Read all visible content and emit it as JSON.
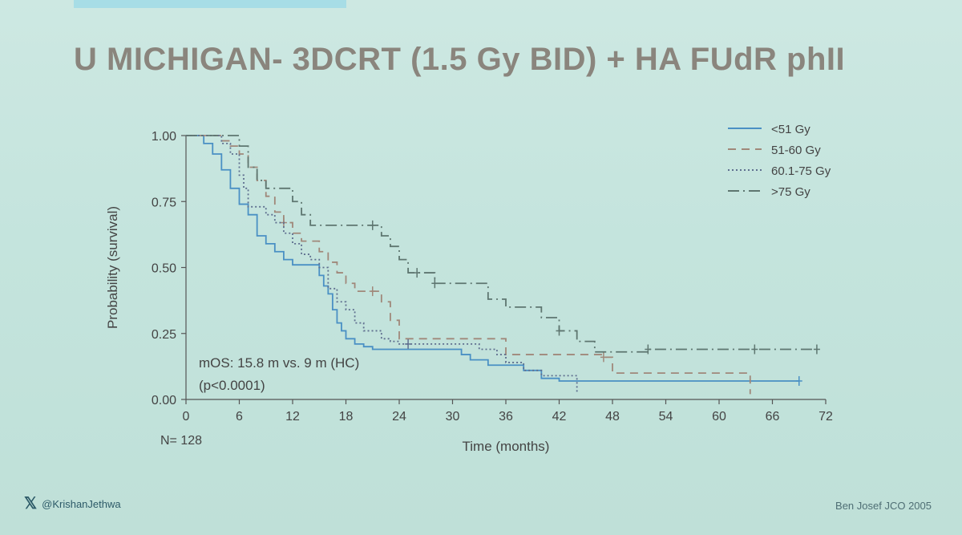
{
  "slide": {
    "title": "U MICHIGAN- 3DCRT (1.5 Gy BID) + HA FUdR phII",
    "handle": "@KrishanJethwa",
    "handle_icon": "x-logo-icon",
    "citation": "Ben Josef JCO 2005"
  },
  "chart_data": {
    "type": "line",
    "xlabel": "Time (months)",
    "ylabel": "Probability (survival)",
    "xlim": [
      0,
      72
    ],
    "ylim": [
      0,
      1
    ],
    "xticks": [
      0,
      6,
      12,
      18,
      24,
      30,
      36,
      42,
      48,
      54,
      60,
      66,
      72
    ],
    "yticks": [
      0.0,
      0.25,
      0.5,
      0.75,
      1.0
    ],
    "ytick_labels": [
      "0.00",
      "0.25",
      "0.50",
      "0.75",
      "1.00"
    ],
    "legend_position": "top-right",
    "annotations": [
      "mOS: 15.8 m vs. 9 m (HC)",
      "(p<0.0001)",
      "N= 128"
    ],
    "series": [
      {
        "name": "<51 Gy",
        "color": "#4a90c4",
        "dash": "solid",
        "x": [
          0,
          2,
          3,
          4,
          5,
          6,
          7,
          8,
          9,
          10,
          11,
          12,
          13,
          15,
          15.5,
          16,
          16.5,
          17,
          17.5,
          18,
          19,
          20,
          21,
          22,
          24,
          26,
          28,
          30,
          31,
          32,
          34,
          36,
          38,
          40,
          42,
          44,
          48,
          54,
          60,
          66,
          69
        ],
        "y": [
          1.0,
          0.97,
          0.93,
          0.87,
          0.8,
          0.74,
          0.7,
          0.62,
          0.59,
          0.56,
          0.53,
          0.51,
          0.51,
          0.47,
          0.43,
          0.4,
          0.34,
          0.29,
          0.26,
          0.23,
          0.21,
          0.2,
          0.19,
          0.19,
          0.19,
          0.19,
          0.19,
          0.19,
          0.17,
          0.15,
          0.13,
          0.13,
          0.11,
          0.08,
          0.07,
          0.07,
          0.07,
          0.07,
          0.07,
          0.07,
          0.07
        ],
        "censor_x": [
          69
        ]
      },
      {
        "name": "51-60 Gy",
        "color": "#a0887a",
        "dash": "10,7",
        "x": [
          0,
          3,
          4,
          5,
          6,
          7,
          8,
          9,
          10,
          11,
          12,
          13,
          14,
          15,
          16,
          17,
          18,
          19,
          20,
          21,
          22,
          23,
          24,
          25,
          28,
          32,
          35,
          36,
          40,
          44,
          46,
          47,
          48,
          54,
          60,
          63.5
        ],
        "y": [
          1.0,
          1.0,
          0.98,
          0.96,
          0.93,
          0.88,
          0.83,
          0.77,
          0.71,
          0.67,
          0.63,
          0.6,
          0.6,
          0.56,
          0.52,
          0.48,
          0.44,
          0.41,
          0.41,
          0.41,
          0.37,
          0.3,
          0.23,
          0.23,
          0.23,
          0.23,
          0.23,
          0.17,
          0.17,
          0.17,
          0.17,
          0.16,
          0.1,
          0.1,
          0.1,
          0.02
        ],
        "censor_x": [
          11,
          21,
          47
        ]
      },
      {
        "name": "60.1-75 Gy",
        "color": "#5f6f8f",
        "dash": "2,3",
        "x": [
          0,
          4,
          5,
          6,
          6.5,
          7,
          8,
          9,
          10,
          11,
          12,
          13,
          14,
          15,
          16,
          17,
          18,
          19,
          20,
          22,
          23,
          24,
          26,
          28,
          30,
          33,
          35,
          36,
          38,
          40,
          42,
          43,
          44
        ],
        "y": [
          1.0,
          0.97,
          0.93,
          0.85,
          0.8,
          0.73,
          0.73,
          0.7,
          0.67,
          0.63,
          0.59,
          0.55,
          0.53,
          0.5,
          0.42,
          0.37,
          0.34,
          0.29,
          0.26,
          0.23,
          0.22,
          0.21,
          0.21,
          0.21,
          0.21,
          0.19,
          0.17,
          0.14,
          0.11,
          0.09,
          0.09,
          0.09,
          0.02
        ],
        "censor_x": [
          25
        ]
      },
      {
        "name": ">75 Gy",
        "color": "#5e7670",
        "dash": "14,5,2,5",
        "x": [
          0,
          5,
          6,
          7,
          8,
          9,
          10,
          12,
          13,
          14,
          15,
          16,
          18,
          20,
          21,
          22,
          23,
          24,
          25,
          26,
          28,
          30,
          32,
          34,
          36,
          40,
          41,
          42,
          44,
          45,
          46,
          48,
          52,
          54,
          60,
          66,
          71
        ],
        "y": [
          1.0,
          1.0,
          0.96,
          0.88,
          0.83,
          0.8,
          0.8,
          0.75,
          0.7,
          0.66,
          0.66,
          0.66,
          0.66,
          0.66,
          0.66,
          0.62,
          0.58,
          0.53,
          0.48,
          0.48,
          0.44,
          0.44,
          0.44,
          0.38,
          0.35,
          0.31,
          0.31,
          0.26,
          0.22,
          0.22,
          0.18,
          0.18,
          0.19,
          0.19,
          0.19,
          0.19,
          0.19
        ],
        "censor_x": [
          21,
          26,
          28,
          42,
          52,
          64,
          71
        ]
      }
    ]
  }
}
